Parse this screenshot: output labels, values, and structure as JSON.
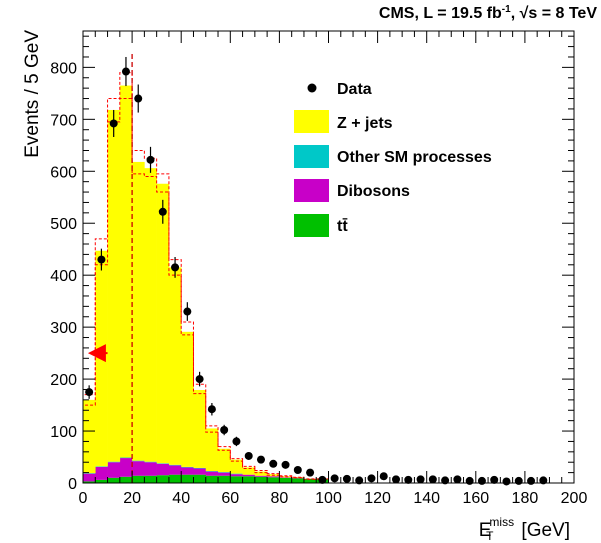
{
  "header": {
    "experiment": "CMS, L = 19.5 fb",
    "lumi_exp": "-1",
    "energy": ", √s = 8 TeV"
  },
  "chart_data": {
    "type": "bar",
    "histogram": true,
    "bin_width": 5,
    "xlabel": "E",
    "xlabel_sub": "T",
    "xlabel_sup": "miss",
    "xlabel_unit": "[GeV]",
    "ylabel": "Events / 5 GeV",
    "xlim": [
      0,
      200
    ],
    "ylim": [
      0,
      870
    ],
    "x_ticks": [
      0,
      20,
      40,
      60,
      80,
      100,
      120,
      140,
      160,
      180,
      200
    ],
    "y_ticks": [
      0,
      100,
      200,
      300,
      400,
      500,
      600,
      700,
      800
    ],
    "grid": false,
    "legend_position": "top-right",
    "legend": [
      "Data",
      "Z + jets",
      "Other SM processes",
      "Dibosons",
      "tt̄"
    ],
    "colors": {
      "zjets": "#ffff00",
      "other_sm": "#00c8c8",
      "dibosons": "#c800c8",
      "ttbar": "#00c000",
      "data": "#000000",
      "uncertainty": "#ff0000",
      "cut_line": "#cc0000",
      "arrow": "#ff0000"
    },
    "bin_edges_start": [
      0,
      5,
      10,
      15,
      20,
      25,
      30,
      35,
      40,
      45,
      50,
      55,
      60,
      65,
      70,
      75,
      80,
      85,
      90,
      95
    ],
    "series": [
      {
        "name": "tt̄",
        "values": [
          3,
          6,
          10,
          12,
          14,
          14,
          15,
          16,
          16,
          16,
          14,
          14,
          13,
          13,
          12,
          11,
          10,
          9,
          8,
          8
        ]
      },
      {
        "name": "Dibosons",
        "values": [
          15,
          25,
          30,
          36,
          28,
          26,
          22,
          18,
          14,
          12,
          8,
          6,
          4,
          3,
          2,
          2,
          1,
          1,
          0,
          0
        ]
      },
      {
        "name": "Other SM processes",
        "values": [
          1,
          1,
          1,
          1,
          1,
          1,
          1,
          1,
          1,
          1,
          1,
          1,
          1,
          0,
          0,
          0,
          0,
          0,
          0,
          0
        ]
      },
      {
        "name": "Z + jets",
        "values": [
          141,
          415,
          677,
          716,
          575,
          565,
          538,
          380,
          260,
          150,
          82,
          45,
          27,
          14,
          8,
          4,
          2,
          1,
          0,
          0
        ]
      }
    ],
    "uncertainty_bands": {
      "upper": [
        170,
        470,
        740,
        790,
        640,
        625,
        595,
        430,
        310,
        190,
        110,
        70,
        47,
        32,
        24,
        18,
        14,
        11,
        8,
        8
      ],
      "lower": [
        150,
        420,
        695,
        740,
        595,
        590,
        560,
        400,
        285,
        172,
        98,
        63,
        42,
        28,
        20,
        15,
        12,
        10,
        7,
        7
      ]
    },
    "data_points": {
      "x": [
        2.5,
        7.5,
        12.5,
        17.5,
        22.5,
        27.5,
        32.5,
        37.5,
        42.5,
        47.5,
        52.5,
        57.5,
        62.5,
        67.5,
        72.5,
        77.5,
        82.5,
        87.5,
        92.5,
        97.5,
        102.5,
        107.5,
        112.5,
        117.5,
        122.5,
        127.5,
        132.5,
        137.5,
        142.5,
        147.5,
        152.5,
        157.5,
        162.5,
        167.5,
        172.5,
        177.5,
        182.5,
        187.5
      ],
      "y": [
        175,
        430,
        692,
        792,
        740,
        622,
        522,
        415,
        330,
        200,
        142,
        102,
        80,
        52,
        45,
        37,
        35,
        25,
        20,
        6,
        9,
        8,
        5,
        9,
        13,
        7,
        6,
        7,
        7,
        5,
        7,
        4,
        4,
        6,
        3,
        4,
        4,
        5
      ],
      "err": [
        13,
        21,
        26,
        28,
        27,
        25,
        23,
        20,
        18,
        14,
        12,
        10,
        9,
        7,
        7,
        6,
        6,
        5,
        4,
        2.5,
        3,
        3,
        2,
        3,
        3.6,
        2.6,
        2.4,
        2.6,
        2.6,
        2.2,
        2.6,
        2,
        2,
        2.4,
        1.7,
        2,
        2,
        2.2
      ]
    },
    "cut_value": 20,
    "arrow": {
      "at_y": 250,
      "from_x": 10,
      "to_x": 2,
      "direction": "left"
    }
  }
}
